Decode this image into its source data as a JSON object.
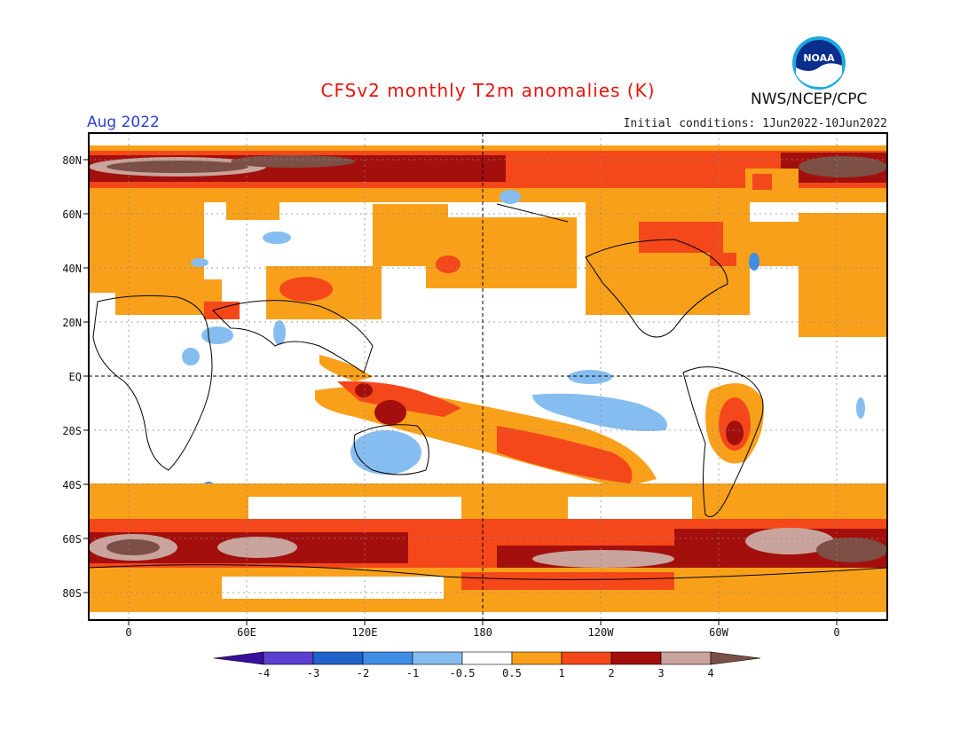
{
  "header": {
    "title": "CFSv2 monthly T2m anomalies (K)",
    "valid_month": "Aug 2022",
    "initial_conditions": "Initial conditions: 1Jun2022-10Jun2022",
    "agency": "NWS/NCEP/CPC",
    "logo_text": "NOAA",
    "logo_icon": "noaa-logo"
  },
  "map": {
    "lat_labels": [
      "80N",
      "60N",
      "40N",
      "20N",
      "EQ",
      "20S",
      "40S",
      "60S",
      "80S"
    ],
    "lon_labels": [
      "0",
      "60E",
      "120E",
      "180",
      "120W",
      "60W",
      "0"
    ]
  },
  "legend": {
    "tick_labels": [
      "-4",
      "-3",
      "-2",
      "-1",
      "-0.5",
      "0.5",
      "1",
      "2",
      "3",
      "4"
    ],
    "colors": [
      "#3a0d9e",
      "#5a3fd0",
      "#1f62c9",
      "#3d8fe6",
      "#86bdf0",
      "#ffffff",
      "#f9a01b",
      "#f4481a",
      "#a30f0d",
      "#c9a49c",
      "#7c4f45"
    ]
  },
  "colors": {
    "title": "#e8140c",
    "month": "#2b3fd6",
    "warm_light": "#f9a01b",
    "warm_mid": "#f4481a",
    "warm_dark": "#a30f0d",
    "warm_pale": "#c9a49c",
    "warm_max": "#7c4f45",
    "cool_light": "#86bdf0",
    "cool_mid": "#3d8fe6"
  }
}
